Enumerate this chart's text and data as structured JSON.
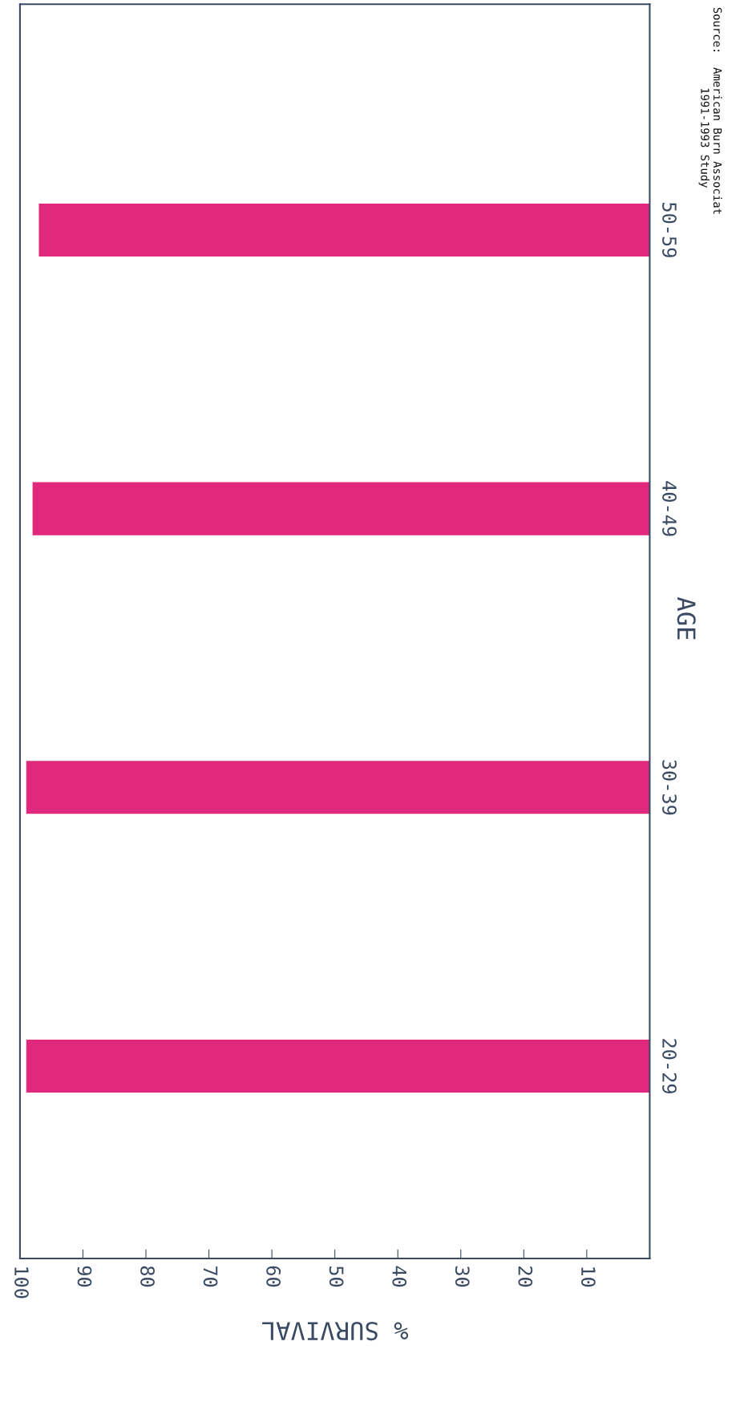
{
  "chart_data": {
    "type": "bar",
    "orientation": "horizontal",
    "categories": [
      "50-59",
      "40-49",
      "30-39",
      "20-29"
    ],
    "values": [
      97,
      98,
      99,
      99
    ],
    "color": "#e0287c",
    "xlim": [
      100,
      0
    ],
    "xticks": [
      100,
      90,
      80,
      70,
      60,
      50,
      40,
      30,
      20,
      10
    ],
    "xlabel": "% SURVIVAL",
    "ylabel": "AGE",
    "grid": false,
    "legend": false,
    "annotations": [
      "Source:  American Burn Associat\n        1991-1993 Study"
    ]
  }
}
